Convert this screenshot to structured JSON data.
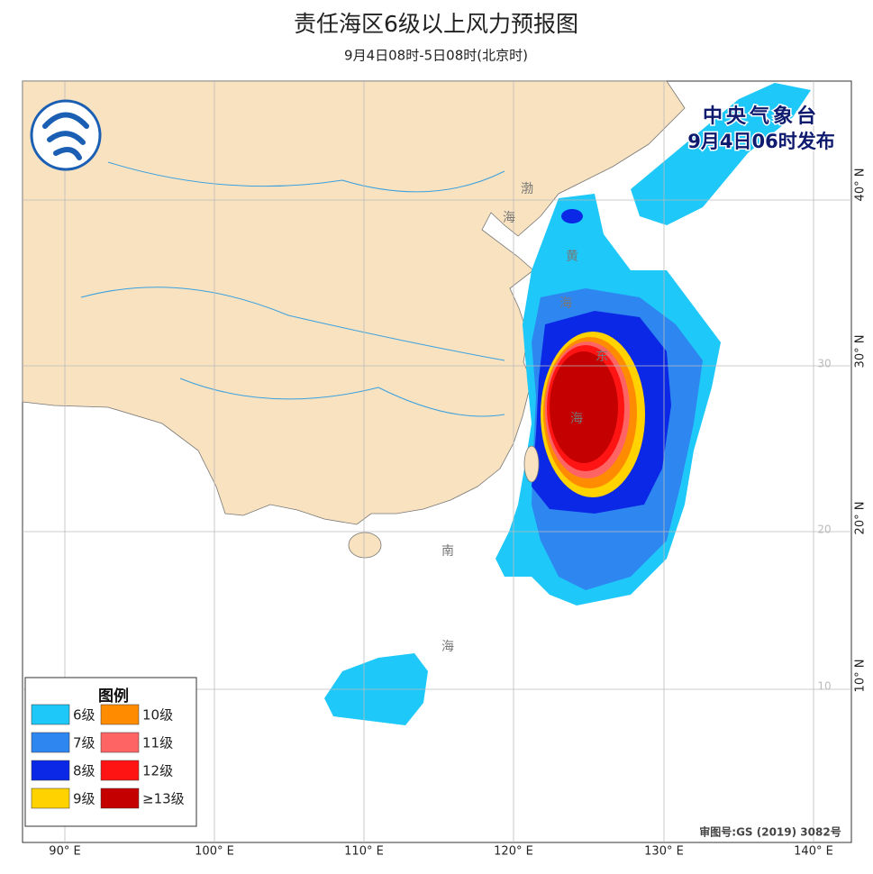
{
  "header": {
    "title": "责任海区6级以上风力预报图",
    "subtitle": "9月4日08时-5日08时(北京时)"
  },
  "issuer": {
    "agency": "中央气象台",
    "issued": "9月4日06时发布"
  },
  "legend": {
    "title": "图例",
    "items": [
      {
        "label": "6级",
        "color": "#1ec8f8"
      },
      {
        "label": "7级",
        "color": "#2e86f0"
      },
      {
        "label": "8级",
        "color": "#0b28e6"
      },
      {
        "label": "9级",
        "color": "#ffd200"
      },
      {
        "label": "10级",
        "color": "#ff8c00"
      },
      {
        "label": "11级",
        "color": "#ff6464"
      },
      {
        "label": "12级",
        "color": "#ff1414"
      },
      {
        "label": "≥13级",
        "color": "#c40000"
      }
    ]
  },
  "axes": {
    "longitude": [
      "90° E",
      "100° E",
      "110° E",
      "120° E",
      "130° E",
      "140° E"
    ],
    "latitude": [
      "40° N",
      "30° N",
      "20° N",
      "10° N"
    ],
    "grid_labels": [
      "30",
      "20",
      "10"
    ]
  },
  "seas": [
    "渤",
    "海",
    "黄",
    "海",
    "东",
    "海",
    "南",
    "海"
  ],
  "approval": "审图号:GS (2019) 3082号"
}
